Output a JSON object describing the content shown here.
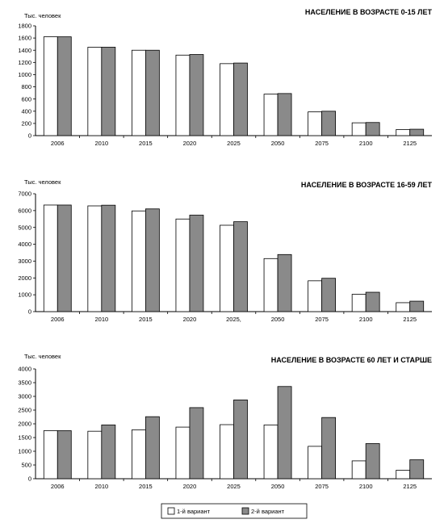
{
  "legend": {
    "items": [
      {
        "label": "1-й вариант",
        "color": "#ffffff"
      },
      {
        "label": "2-й вариант",
        "color": "#8a8a8a"
      }
    ]
  },
  "chart_data": [
    {
      "type": "bar",
      "title": "НАСЕЛЕНИЕ В ВОЗРАСТЕ 0-15 ЛЕТ",
      "ylabel": "Тыс. человек",
      "categories": [
        "2006",
        "2010",
        "2015",
        "2020",
        "2025",
        "2050",
        "2075",
        "2100",
        "2125"
      ],
      "ylim": [
        0,
        1800
      ],
      "yticks": [
        0,
        200,
        400,
        600,
        800,
        1000,
        1200,
        1400,
        1600,
        1800
      ],
      "series": [
        {
          "name": "1-й вариант",
          "values": [
            1620,
            1450,
            1400,
            1320,
            1180,
            680,
            390,
            210,
            100
          ]
        },
        {
          "name": "2-й вариант",
          "values": [
            1620,
            1450,
            1400,
            1330,
            1190,
            690,
            400,
            215,
            105
          ]
        }
      ]
    },
    {
      "type": "bar",
      "title": "НАСЕЛЕНИЕ В ВОЗРАСТЕ 16-59 ЛЕТ",
      "ylabel": "Тыс. человек",
      "categories": [
        "2006",
        "2010",
        "2015",
        "2020",
        "2025,",
        "2050",
        "2075",
        "2100",
        "2125"
      ],
      "ylim": [
        0,
        7000
      ],
      "yticks": [
        0,
        1000,
        2000,
        3000,
        4000,
        5000,
        6000,
        7000
      ],
      "series": [
        {
          "name": "1-й вариант",
          "values": [
            6330,
            6280,
            5980,
            5500,
            5130,
            3150,
            1830,
            1030,
            530
          ]
        },
        {
          "name": "2-й вариант",
          "values": [
            6330,
            6320,
            6100,
            5730,
            5340,
            3390,
            1980,
            1150,
            620
          ]
        }
      ]
    },
    {
      "type": "bar",
      "title": "НАСЕЛЕНИЕ В ВОЗРАСТЕ 60 ЛЕТ И СТАРШЕ",
      "ylabel": "Тыс. человек",
      "categories": [
        "2006",
        "2010",
        "2015",
        "2020",
        "2025",
        "2050",
        "2075",
        "2100",
        "2125"
      ],
      "ylim": [
        0,
        4000
      ],
      "yticks": [
        0,
        500,
        1000,
        1500,
        2000,
        2500,
        3000,
        3500,
        4000
      ],
      "series": [
        {
          "name": "1-й вариант",
          "values": [
            1750,
            1730,
            1780,
            1880,
            1970,
            1960,
            1180,
            650,
            310
          ]
        },
        {
          "name": "2-й вариант",
          "values": [
            1750,
            1960,
            2260,
            2590,
            2870,
            3360,
            2230,
            1280,
            690
          ]
        }
      ]
    }
  ]
}
